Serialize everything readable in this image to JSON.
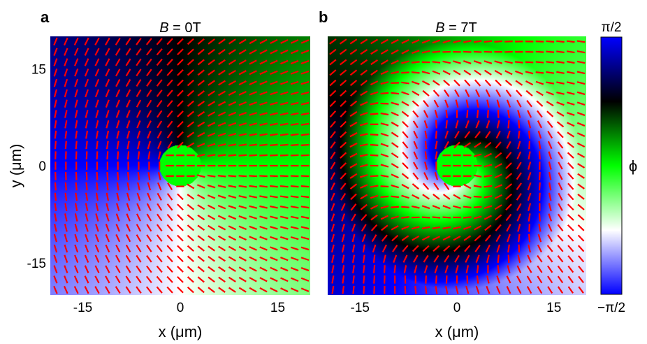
{
  "chart_data": [
    {
      "panel": "a",
      "type": "heatmap",
      "title_italic": "B",
      "title_rest": " = 0T",
      "xlabel": "x (μm)",
      "ylabel": "y (μm)",
      "xlim": [
        -20,
        20
      ],
      "ylim": [
        -20,
        20
      ],
      "xticks": [
        -15,
        0,
        15
      ],
      "yticks": [
        15,
        0,
        -15
      ],
      "core_radius_um": 3.2,
      "swirl_strength_rad": 0,
      "description_field": "director angle phi overlaid with red director segments"
    },
    {
      "panel": "b",
      "type": "heatmap",
      "title_italic": "B",
      "title_rest": " = 7T",
      "xlabel": "x (μm)",
      "ylabel": "",
      "xlim": [
        -20,
        20
      ],
      "ylim": [
        -20,
        20
      ],
      "xticks": [
        -15,
        0,
        15
      ],
      "yticks": [],
      "core_radius_um": 3.2,
      "swirl_strength_rad": 2.6
    }
  ],
  "colorbar": {
    "label": "ϕ",
    "top_label": "π/2",
    "bottom_label": "−π/2",
    "range": [
      -1.5708,
      1.5708
    ],
    "colors": [
      "#0000ff",
      "#ffffff",
      "#00ff00",
      "#000000",
      "#0000ff"
    ]
  },
  "segment_color": "#ff0000"
}
